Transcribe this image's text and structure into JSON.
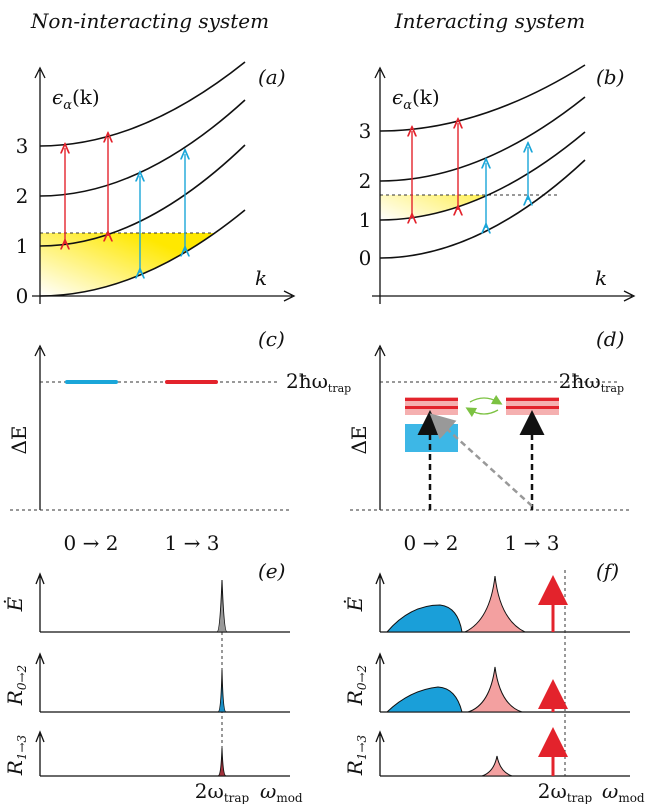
{
  "titles": [
    "Non-interacting system",
    "Interacting system"
  ],
  "panel_labels": [
    "(a)",
    "(b)",
    "(c)",
    "(d)",
    "(e)",
    "(f)"
  ],
  "band_axes": {
    "y_label": {
      "symbol": "ϵ",
      "sub": "α",
      "arg": "(k)"
    },
    "x_label": "k",
    "ticks_left": [
      "0",
      "1",
      "2",
      "3"
    ],
    "ticks_right": [
      "0",
      "1",
      "2",
      "3"
    ]
  },
  "energy_axes": {
    "y_label": "ΔE",
    "level": {
      "main": "2ħω",
      "sub": "trap"
    },
    "transitions": [
      "0 → 2",
      "1 → 3"
    ]
  },
  "rate_axes": {
    "y_labels": [
      {
        "main": "Ė"
      },
      {
        "main": "R",
        "sub": "0→2"
      },
      {
        "main": "R",
        "sub": "1→3"
      }
    ],
    "x_tick": {
      "main": "2ω",
      "sub": "trap"
    },
    "x_label": {
      "main": "ω",
      "sub": "mod"
    }
  }
}
